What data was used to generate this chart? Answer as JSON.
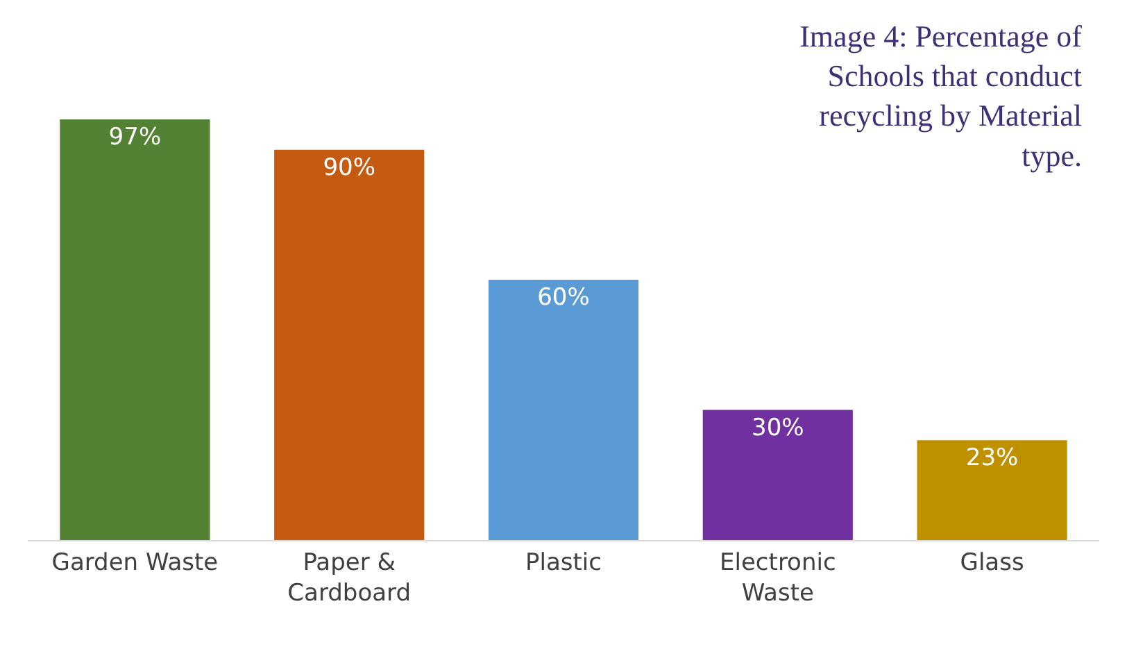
{
  "chart_data": {
    "type": "bar",
    "title": "Image 4: Percentage of Schools that conduct recycling by Material type.",
    "categories": [
      "Garden Waste",
      "Paper & Cardboard",
      "Plastic",
      "Electronic Waste",
      "Glass"
    ],
    "values": [
      97,
      90,
      60,
      30,
      23
    ],
    "colors": [
      "#548235",
      "#c55a11",
      "#5b9bd5",
      "#7030a0",
      "#bf9000"
    ],
    "value_labels": [
      "97%",
      "90%",
      "60%",
      "30%",
      "23%"
    ],
    "legend": false
  }
}
